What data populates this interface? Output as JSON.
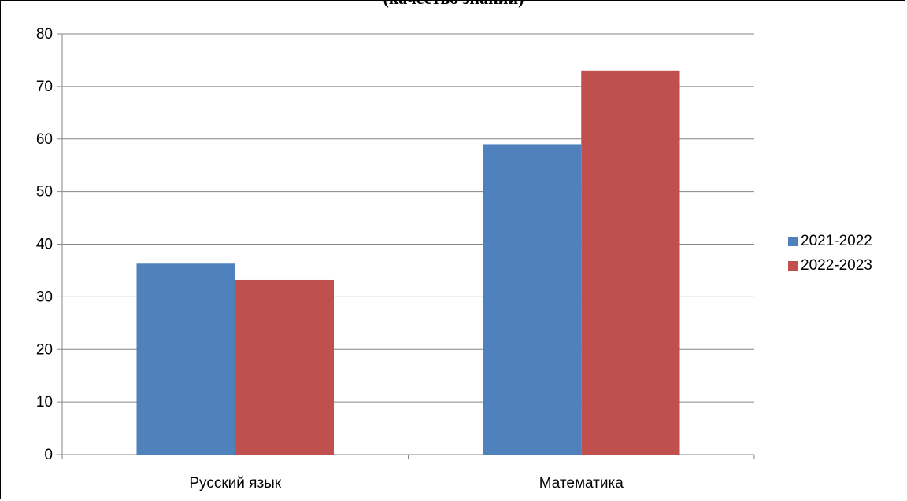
{
  "chart_data": {
    "type": "bar",
    "title": "(качество знаний)",
    "categories": [
      "Русский язык",
      "Математика"
    ],
    "series": [
      {
        "name": "2021-2022",
        "values": [
          36.3,
          59
        ],
        "color": "#4F81BD"
      },
      {
        "name": "2022-2023",
        "values": [
          33.2,
          73
        ],
        "color": "#C0504D"
      }
    ],
    "ylim": [
      0,
      80
    ],
    "yticks": [
      0,
      10,
      20,
      30,
      40,
      50,
      60,
      70,
      80
    ],
    "grid": true,
    "legend": "right"
  }
}
